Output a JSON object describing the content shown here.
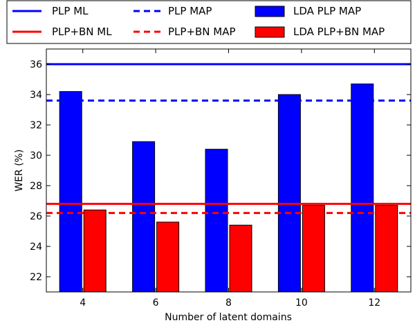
{
  "chart_data": {
    "type": "bar",
    "title": "",
    "xlabel": "Number of latent domains",
    "ylabel": "WER (%)",
    "categories": [
      "4",
      "6",
      "8",
      "10",
      "12"
    ],
    "ylim": [
      21,
      37
    ],
    "yticks": [
      22,
      24,
      26,
      28,
      30,
      32,
      34,
      36
    ],
    "grid": false,
    "legend_position": "top",
    "series": [
      {
        "name": "LDA PLP MAP",
        "color": "#0000ff",
        "values": [
          34.2,
          30.9,
          30.4,
          34.0,
          34.7
        ]
      },
      {
        "name": "LDA PLP+BN MAP",
        "color": "#ff0000",
        "values": [
          26.4,
          25.6,
          25.4,
          26.7,
          26.7
        ]
      }
    ],
    "reference_lines": [
      {
        "name": "PLP ML",
        "color": "#0000ff",
        "style": "solid",
        "value": 36.0
      },
      {
        "name": "PLP MAP",
        "color": "#0000ff",
        "style": "dashed",
        "value": 33.6
      },
      {
        "name": "PLP+BN ML",
        "color": "#ff0000",
        "style": "solid",
        "value": 26.8
      },
      {
        "name": "PLP+BN MAP",
        "color": "#ff0000",
        "style": "dashed",
        "value": 26.2
      }
    ]
  }
}
